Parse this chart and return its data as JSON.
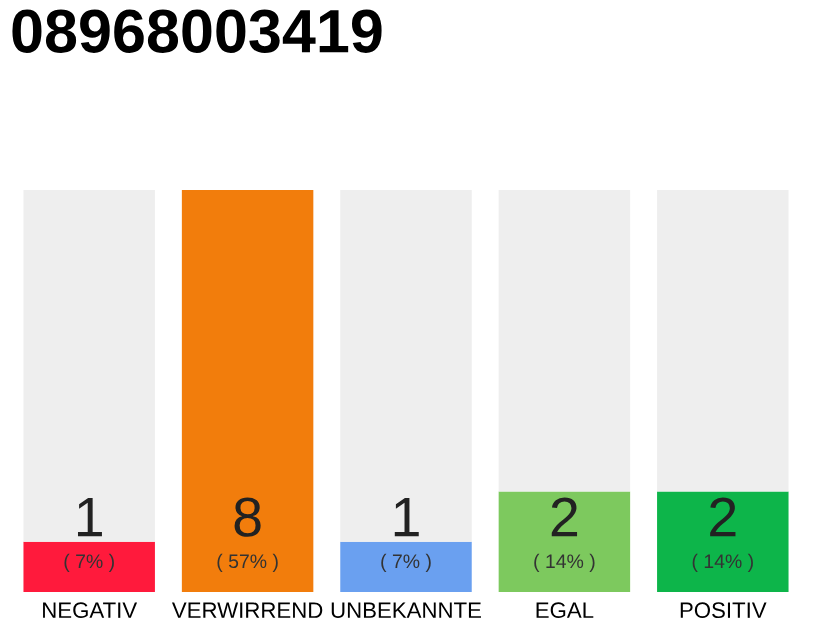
{
  "chart_data": {
    "type": "bar",
    "title": "08968003419",
    "categories": [
      "NEGATIV",
      "VERWIRREND",
      "UNBEKANNTE",
      "EGAL",
      "POSITIV"
    ],
    "stacked": true,
    "ylim": [
      0,
      8
    ],
    "tick_labels": "x",
    "grid": false,
    "legend": false,
    "series": [
      {
        "colors": [
          "#ff1a3c",
          "#f27d0c",
          "#6aa0f0",
          "#7dc95e",
          "#0db54a"
        ],
        "values": [
          1,
          8,
          1,
          2,
          2
        ],
        "value_labels": [
          "1",
          "8",
          "1",
          "2",
          "2"
        ]
      },
      {
        "color": "#eeeeee",
        "values": [
          7,
          0,
          7,
          6,
          6
        ]
      }
    ],
    "annotations": [
      "( 7% )",
      "( 57% )",
      "( 7% )",
      "( 14% )",
      "( 14% )"
    ]
  }
}
